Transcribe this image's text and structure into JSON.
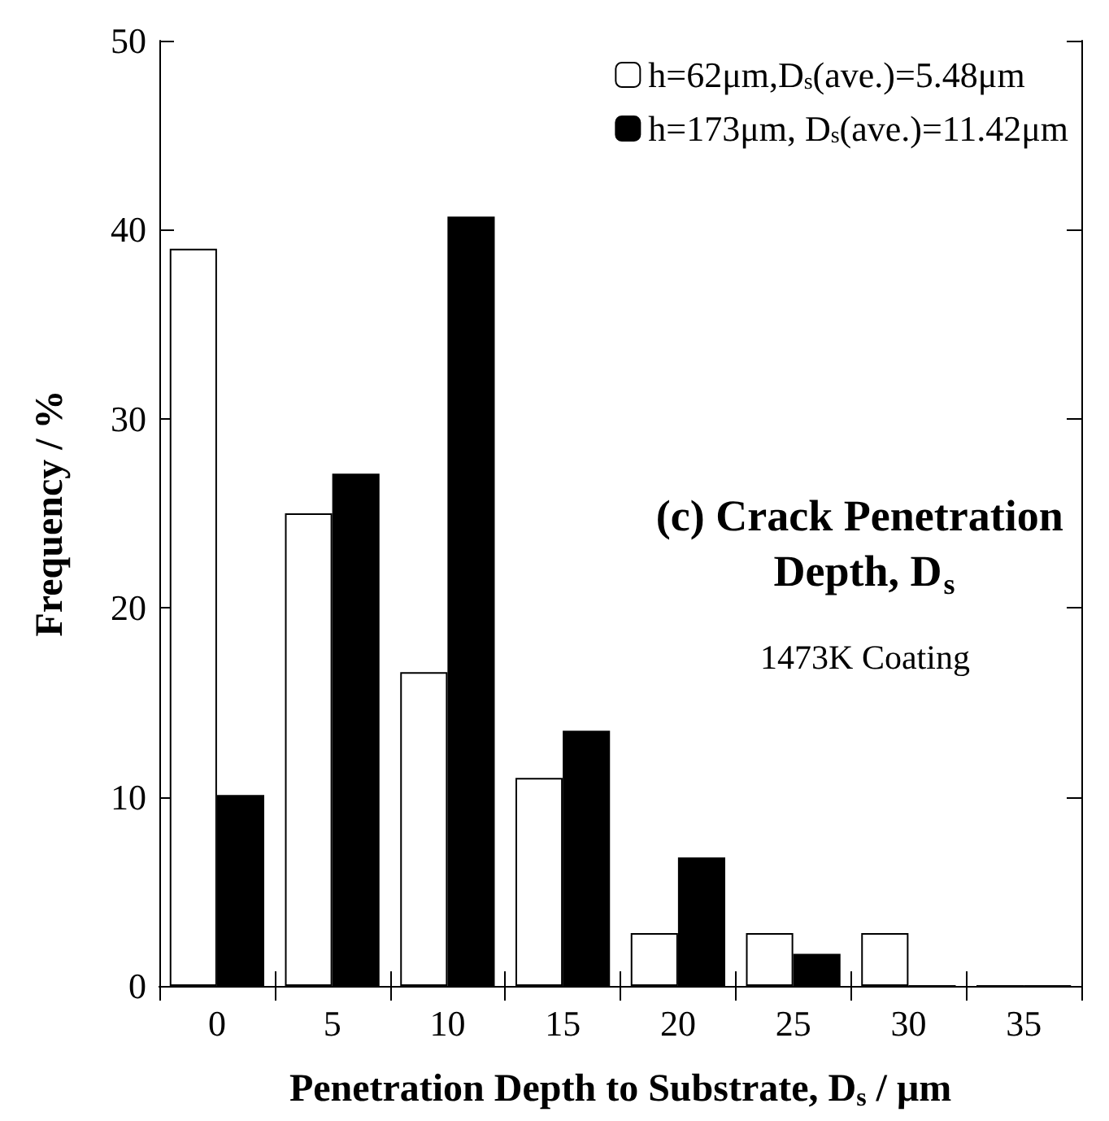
{
  "chart_data": {
    "type": "bar",
    "categories": [
      "0",
      "5",
      "10",
      "15",
      "20",
      "25",
      "30",
      "35"
    ],
    "series": [
      {
        "name": "h=62μm,D$_{s}$(ave.)=5.48μm",
        "color": "#ffffff",
        "values": [
          39.0,
          25.0,
          16.6,
          11.0,
          2.8,
          2.8,
          2.8,
          0
        ]
      },
      {
        "name": "h=173μm, D$_{s}$(ave.)=11.42μm",
        "color": "#000000",
        "values": [
          10.1,
          27.1,
          40.7,
          13.5,
          6.8,
          1.7,
          0,
          0
        ]
      }
    ],
    "xlabel": "Penetration Depth to Substrate, D$_{s}$ / μm",
    "ylabel": "Frequency / %",
    "ylim": [
      0,
      50
    ],
    "yticks": [
      0,
      10,
      20,
      30,
      40,
      50
    ],
    "annotations": [
      "(c) Crack Penetration Depth, D$_{s}$",
      "1473K Coating"
    ],
    "grid": false,
    "legend": "top right"
  }
}
